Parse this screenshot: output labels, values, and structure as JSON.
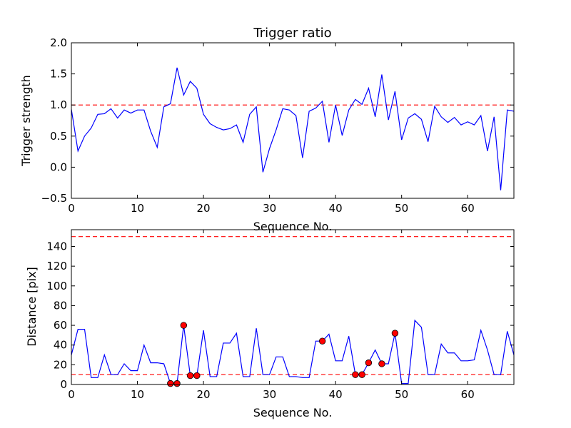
{
  "chart_data": [
    {
      "type": "line",
      "title": "Trigger ratio",
      "xlabel": "Sequence No.",
      "ylabel": "Trigger strength",
      "xlim": [
        0,
        67
      ],
      "ylim": [
        -0.5,
        2.0
      ],
      "xticks": [
        0,
        10,
        20,
        30,
        40,
        50,
        60
      ],
      "xtick_labels": [
        "0",
        "10",
        "20",
        "30",
        "40",
        "50",
        "60"
      ],
      "yticks": [
        -0.5,
        0.0,
        0.5,
        1.0,
        1.5,
        2.0
      ],
      "ytick_labels": [
        "−0.5",
        "0.0",
        "0.5",
        "1.0",
        "1.5",
        "2.0"
      ],
      "grid": false,
      "reference_lines": [
        {
          "y": 1.0,
          "color": "#ff0000",
          "style": "dashed"
        }
      ],
      "series": [
        {
          "color": "#0000ff",
          "x": [
            0,
            1,
            2,
            3,
            4,
            5,
            6,
            7,
            8,
            9,
            10,
            11,
            12,
            13,
            14,
            15,
            16,
            17,
            18,
            19,
            20,
            21,
            22,
            23,
            24,
            25,
            26,
            27,
            28,
            29,
            30,
            31,
            32,
            33,
            34,
            35,
            36,
            37,
            38,
            39,
            40,
            41,
            42,
            43,
            44,
            45,
            46,
            47,
            48,
            49,
            50,
            51,
            52,
            53,
            54,
            55,
            56,
            57,
            58,
            59,
            60,
            61,
            62,
            63,
            64,
            65,
            66,
            67
          ],
          "values": [
            0.93,
            0.26,
            0.5,
            0.63,
            0.85,
            0.86,
            0.94,
            0.79,
            0.92,
            0.87,
            0.92,
            0.92,
            0.58,
            0.32,
            0.97,
            1.02,
            1.6,
            1.16,
            1.38,
            1.27,
            0.85,
            0.7,
            0.64,
            0.6,
            0.62,
            0.68,
            0.4,
            0.85,
            0.97,
            -0.08,
            0.3,
            0.6,
            0.94,
            0.92,
            0.83,
            0.15,
            0.9,
            0.95,
            1.06,
            0.4,
            1.0,
            0.51,
            0.92,
            1.09,
            1.01,
            1.27,
            0.81,
            1.49,
            0.76,
            1.22,
            0.44,
            0.79,
            0.86,
            0.77,
            0.41,
            0.98,
            0.81,
            0.72,
            0.8,
            0.68,
            0.73,
            0.68,
            0.83,
            0.26,
            0.81,
            -0.37,
            0.92,
            0.9
          ]
        }
      ]
    },
    {
      "type": "line",
      "title": "",
      "xlabel": "Sequence No.",
      "ylabel": "Distance [pix]",
      "xlim": [
        0,
        67
      ],
      "ylim": [
        0,
        157
      ],
      "xticks": [
        0,
        10,
        20,
        30,
        40,
        50,
        60
      ],
      "xtick_labels": [
        "0",
        "10",
        "20",
        "30",
        "40",
        "50",
        "60"
      ],
      "yticks": [
        0,
        20,
        40,
        60,
        80,
        100,
        120,
        140
      ],
      "ytick_labels": [
        "0",
        "20",
        "40",
        "60",
        "80",
        "100",
        "120",
        "140"
      ],
      "grid": false,
      "reference_lines": [
        {
          "y": 150,
          "color": "#ff0000",
          "style": "dashed"
        },
        {
          "y": 10,
          "color": "#ff0000",
          "style": "dashed"
        }
      ],
      "series": [
        {
          "color": "#0000ff",
          "x": [
            0,
            1,
            2,
            3,
            4,
            5,
            6,
            7,
            8,
            9,
            10,
            11,
            12,
            13,
            14,
            15,
            16,
            17,
            18,
            19,
            20,
            21,
            22,
            23,
            24,
            25,
            26,
            27,
            28,
            29,
            30,
            31,
            32,
            33,
            34,
            35,
            36,
            37,
            38,
            39,
            40,
            41,
            42,
            43,
            44,
            45,
            46,
            47,
            48,
            49,
            50,
            51,
            52,
            53,
            54,
            55,
            56,
            57,
            58,
            59,
            60,
            61,
            62,
            63,
            64,
            65,
            66,
            67
          ],
          "values": [
            30,
            56,
            56,
            7,
            7,
            30,
            10,
            10,
            21,
            14,
            14,
            40,
            22,
            22,
            21,
            1,
            1,
            60,
            9,
            9,
            55,
            8,
            8,
            42,
            42,
            52,
            8,
            8,
            57,
            10,
            10,
            28,
            28,
            8,
            8,
            7,
            7,
            44,
            44,
            51,
            24,
            24,
            49,
            10,
            10,
            22,
            35,
            21,
            21,
            52,
            1,
            1,
            65,
            58,
            10,
            10,
            41,
            32,
            32,
            24,
            24,
            25,
            55,
            35,
            10,
            10,
            54,
            30
          ]
        },
        {
          "color": "#ff0000",
          "marker": "circle",
          "x": [
            15,
            16,
            17,
            18,
            19,
            38,
            43,
            44,
            45,
            47,
            49
          ],
          "values": [
            1,
            1,
            60,
            9,
            9,
            44,
            10,
            10,
            22,
            21,
            52
          ]
        }
      ]
    }
  ]
}
